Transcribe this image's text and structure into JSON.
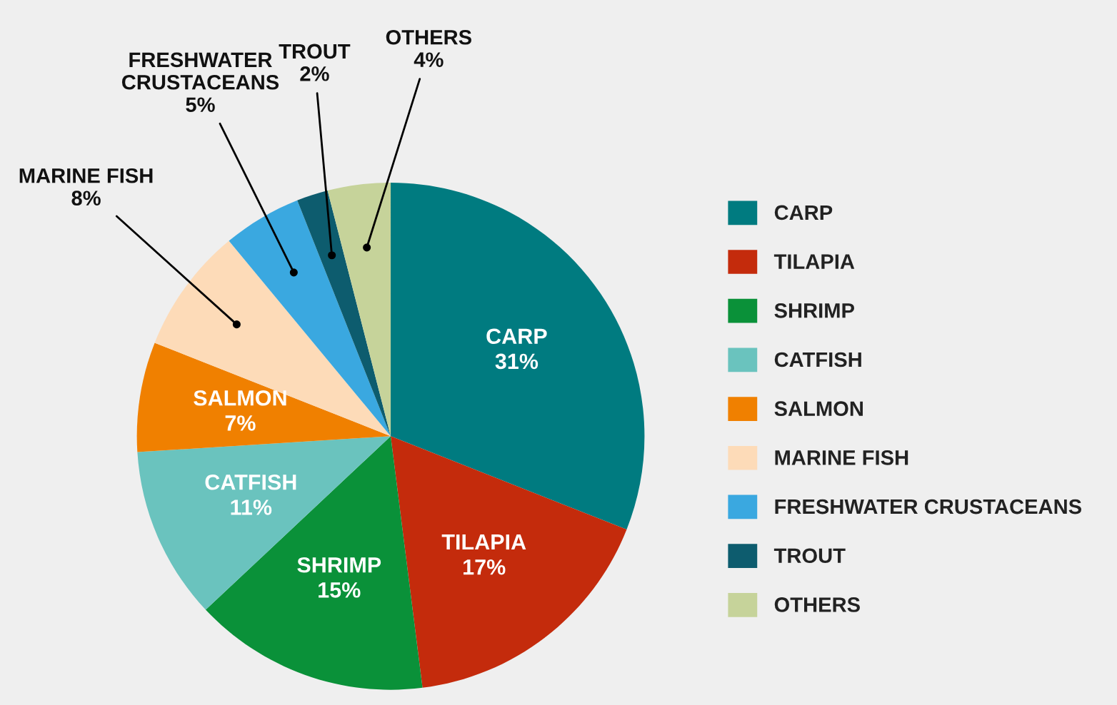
{
  "chart_data": {
    "type": "pie",
    "categories": [
      "CARP",
      "TILAPIA",
      "SHRIMP",
      "CATFISH",
      "SALMON",
      "MARINE FISH",
      "FRESHWATER CRUSTACEANS",
      "TROUT",
      "OTHERS"
    ],
    "values": [
      31,
      17,
      15,
      11,
      7,
      8,
      5,
      2,
      4
    ],
    "value_labels": [
      "31%",
      "17%",
      "15%",
      "11%",
      "7%",
      "8%",
      "5%",
      "2%",
      "4%"
    ],
    "colors": [
      "#007b80",
      "#c42b0c",
      "#0a9139",
      "#6ac3be",
      "#f08000",
      "#fddbb8",
      "#3aa8e0",
      "#0d5c6e",
      "#c6d39a"
    ],
    "legend": "right"
  }
}
